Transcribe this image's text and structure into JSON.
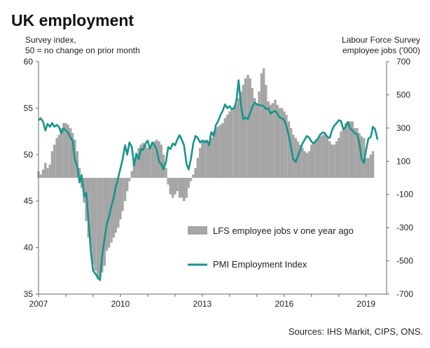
{
  "title": "UK employment",
  "left_axis_note": [
    "Survey index,",
    "50 = no change on prior month"
  ],
  "right_axis_note": [
    "Labour Force Survey",
    "employee jobs  ('000)"
  ],
  "source": "Sources: IHS Markit, CIPS, ONS.",
  "colors": {
    "bars": "#a6a6a6",
    "line": "#17948c",
    "axis": "#666666"
  },
  "chart_data": {
    "type": "bar+line",
    "x_ticks": [
      "2007",
      "2010",
      "2013",
      "2016",
      "2019"
    ],
    "x_range": [
      2007.0,
      2019.75
    ],
    "y_left": {
      "ticks": [
        35,
        40,
        45,
        50,
        55,
        60
      ],
      "range": [
        35,
        60
      ]
    },
    "y_right": {
      "ticks": [
        -700,
        -500,
        -300,
        -100,
        100,
        300,
        500,
        700
      ],
      "range": [
        -700,
        700
      ]
    },
    "legend": [
      {
        "label": "LFS employee jobs v one year ago",
        "kind": "bar"
      },
      {
        "label": "PMI Employment Index",
        "kind": "line"
      }
    ],
    "series": [
      {
        "name": "LFS employee jobs v one year ago",
        "axis": "right",
        "kind": "bar",
        "x": [
          2007.0,
          2007.08,
          2007.17,
          2007.25,
          2007.33,
          2007.42,
          2007.5,
          2007.58,
          2007.67,
          2007.75,
          2007.83,
          2007.92,
          2008.0,
          2008.08,
          2008.17,
          2008.25,
          2008.33,
          2008.42,
          2008.5,
          2008.58,
          2008.67,
          2008.75,
          2008.83,
          2008.92,
          2009.0,
          2009.08,
          2009.17,
          2009.25,
          2009.33,
          2009.42,
          2009.5,
          2009.58,
          2009.67,
          2009.75,
          2009.83,
          2009.92,
          2010.0,
          2010.08,
          2010.17,
          2010.25,
          2010.33,
          2010.42,
          2010.5,
          2010.58,
          2010.67,
          2010.75,
          2010.83,
          2010.92,
          2011.0,
          2011.08,
          2011.17,
          2011.25,
          2011.33,
          2011.42,
          2011.5,
          2011.58,
          2011.67,
          2011.75,
          2011.83,
          2011.92,
          2012.0,
          2012.08,
          2012.17,
          2012.25,
          2012.33,
          2012.42,
          2012.5,
          2012.58,
          2012.67,
          2012.75,
          2012.83,
          2012.92,
          2013.0,
          2013.08,
          2013.17,
          2013.25,
          2013.33,
          2013.42,
          2013.5,
          2013.58,
          2013.67,
          2013.75,
          2013.83,
          2013.92,
          2014.0,
          2014.08,
          2014.17,
          2014.25,
          2014.33,
          2014.42,
          2014.5,
          2014.58,
          2014.67,
          2014.75,
          2014.83,
          2014.92,
          2015.0,
          2015.08,
          2015.17,
          2015.25,
          2015.33,
          2015.42,
          2015.5,
          2015.58,
          2015.67,
          2015.75,
          2015.83,
          2015.92,
          2016.0,
          2016.08,
          2016.17,
          2016.25,
          2016.33,
          2016.42,
          2016.5,
          2016.58,
          2016.67,
          2016.75,
          2016.83,
          2016.92,
          2017.0,
          2017.08,
          2017.17,
          2017.25,
          2017.33,
          2017.42,
          2017.5,
          2017.58,
          2017.67,
          2017.75,
          2017.83,
          2017.92,
          2018.0,
          2018.08,
          2018.17,
          2018.25,
          2018.33,
          2018.42,
          2018.5,
          2018.58,
          2018.67,
          2018.75,
          2018.83,
          2018.92,
          2019.0,
          2019.08,
          2019.17,
          2019.25
        ],
        "values": [
          40,
          20,
          50,
          90,
          60,
          80,
          160,
          200,
          240,
          260,
          300,
          330,
          330,
          320,
          300,
          270,
          230,
          160,
          60,
          -60,
          -150,
          -260,
          -360,
          -430,
          -520,
          -560,
          -610,
          -600,
          -570,
          -530,
          -440,
          -420,
          -390,
          -360,
          -330,
          -300,
          -250,
          -200,
          -140,
          -80,
          -20,
          40,
          100,
          140,
          180,
          200,
          210,
          200,
          180,
          170,
          200,
          220,
          230,
          220,
          200,
          140,
          60,
          -40,
          -100,
          -120,
          -100,
          -80,
          -120,
          -120,
          -140,
          -120,
          -60,
          -20,
          20,
          60,
          120,
          180,
          220,
          230,
          220,
          220,
          240,
          280,
          300,
          310,
          320,
          330,
          360,
          380,
          400,
          420,
          420,
          450,
          480,
          520,
          560,
          600,
          620,
          600,
          540,
          480,
          450,
          520,
          630,
          660,
          560,
          460,
          440,
          450,
          470,
          440,
          420,
          420,
          400,
          380,
          340,
          300,
          260,
          240,
          220,
          200,
          180,
          160,
          150,
          160,
          200,
          210,
          230,
          240,
          250,
          260,
          270,
          240,
          220,
          200,
          200,
          220,
          240,
          280,
          300,
          330,
          340,
          340,
          340,
          300,
          300,
          270,
          250,
          240,
          120,
          120,
          140,
          160
        ]
      },
      {
        "name": "PMI Employment Index",
        "axis": "left",
        "kind": "line",
        "x": [
          2007.0,
          2007.08,
          2007.17,
          2007.25,
          2007.33,
          2007.42,
          2007.5,
          2007.58,
          2007.67,
          2007.75,
          2007.83,
          2007.92,
          2008.0,
          2008.08,
          2008.17,
          2008.25,
          2008.33,
          2008.42,
          2008.5,
          2008.58,
          2008.67,
          2008.75,
          2008.83,
          2008.92,
          2009.0,
          2009.08,
          2009.17,
          2009.25,
          2009.33,
          2009.42,
          2009.5,
          2009.58,
          2009.67,
          2009.75,
          2009.83,
          2009.92,
          2010.0,
          2010.08,
          2010.17,
          2010.25,
          2010.33,
          2010.42,
          2010.5,
          2010.58,
          2010.67,
          2010.75,
          2010.83,
          2010.92,
          2011.0,
          2011.08,
          2011.17,
          2011.25,
          2011.33,
          2011.42,
          2011.5,
          2011.58,
          2011.67,
          2011.75,
          2011.83,
          2011.92,
          2012.0,
          2012.08,
          2012.17,
          2012.25,
          2012.33,
          2012.42,
          2012.5,
          2012.58,
          2012.67,
          2012.75,
          2012.83,
          2012.92,
          2013.0,
          2013.08,
          2013.17,
          2013.25,
          2013.33,
          2013.42,
          2013.5,
          2013.58,
          2013.67,
          2013.75,
          2013.83,
          2013.92,
          2014.0,
          2014.08,
          2014.17,
          2014.25,
          2014.33,
          2014.42,
          2014.5,
          2014.58,
          2014.67,
          2014.75,
          2014.83,
          2014.92,
          2015.0,
          2015.08,
          2015.17,
          2015.25,
          2015.33,
          2015.42,
          2015.5,
          2015.58,
          2015.67,
          2015.75,
          2015.83,
          2015.92,
          2016.0,
          2016.08,
          2016.17,
          2016.25,
          2016.33,
          2016.42,
          2016.5,
          2016.58,
          2016.67,
          2016.75,
          2016.83,
          2016.92,
          2017.0,
          2017.08,
          2017.17,
          2017.25,
          2017.33,
          2017.42,
          2017.5,
          2017.58,
          2017.67,
          2017.75,
          2017.83,
          2017.92,
          2018.0,
          2018.08,
          2018.17,
          2018.25,
          2018.33,
          2018.42,
          2018.5,
          2018.58,
          2018.67,
          2018.75,
          2018.83,
          2018.92,
          2019.0,
          2019.08,
          2019.17,
          2019.25,
          2019.33,
          2019.42
        ],
        "values": [
          53.7,
          53.9,
          53.5,
          52.6,
          53.3,
          53.0,
          53.4,
          53.0,
          53.2,
          53.0,
          52.3,
          52.8,
          52.6,
          52.4,
          51.8,
          51.5,
          49.5,
          48.7,
          47.0,
          47.8,
          45.5,
          45.9,
          43.0,
          39.5,
          37.5,
          37.2,
          36.8,
          36.5,
          39.0,
          41.0,
          42.5,
          43.3,
          44.5,
          45.3,
          46.5,
          47.5,
          48.5,
          49.5,
          51.0,
          50.0,
          51.3,
          50.8,
          48.8,
          50.1,
          49.5,
          50.6,
          50.5,
          51.2,
          51.5,
          50.6,
          51.3,
          51.0,
          50.5,
          49.2,
          49.0,
          48.4,
          49.2,
          50.8,
          50.6,
          51.2,
          51.0,
          51.6,
          52.1,
          51.6,
          51.0,
          49.0,
          48.4,
          49.5,
          51.2,
          52.0,
          51.8,
          51.3,
          51.5,
          51.3,
          51.5,
          51.0,
          52.4,
          52.0,
          53.2,
          53.6,
          54.3,
          54.7,
          55.4,
          55.0,
          55.2,
          54.9,
          55.0,
          55.8,
          58.0,
          55.2,
          53.8,
          54.0,
          53.8,
          54.5,
          55.1,
          55.6,
          55.4,
          55.3,
          55.3,
          55.2,
          54.9,
          55.0,
          54.4,
          54.6,
          54.7,
          54.4,
          54.0,
          53.9,
          53.7,
          53.1,
          52.0,
          50.8,
          49.5,
          49.2,
          49.8,
          50.4,
          51.2,
          51.6,
          52.0,
          51.8,
          51.4,
          51.2,
          51.5,
          51.8,
          52.2,
          52.4,
          52.3,
          51.9,
          51.8,
          52.6,
          53.1,
          53.4,
          53.7,
          53.6,
          52.7,
          53.0,
          53.5,
          52.8,
          52.6,
          52.3,
          52.2,
          51.3,
          49.6,
          49.1,
          50.5,
          51.7,
          51.9,
          53.0,
          52.7,
          51.6
        ]
      }
    ]
  }
}
